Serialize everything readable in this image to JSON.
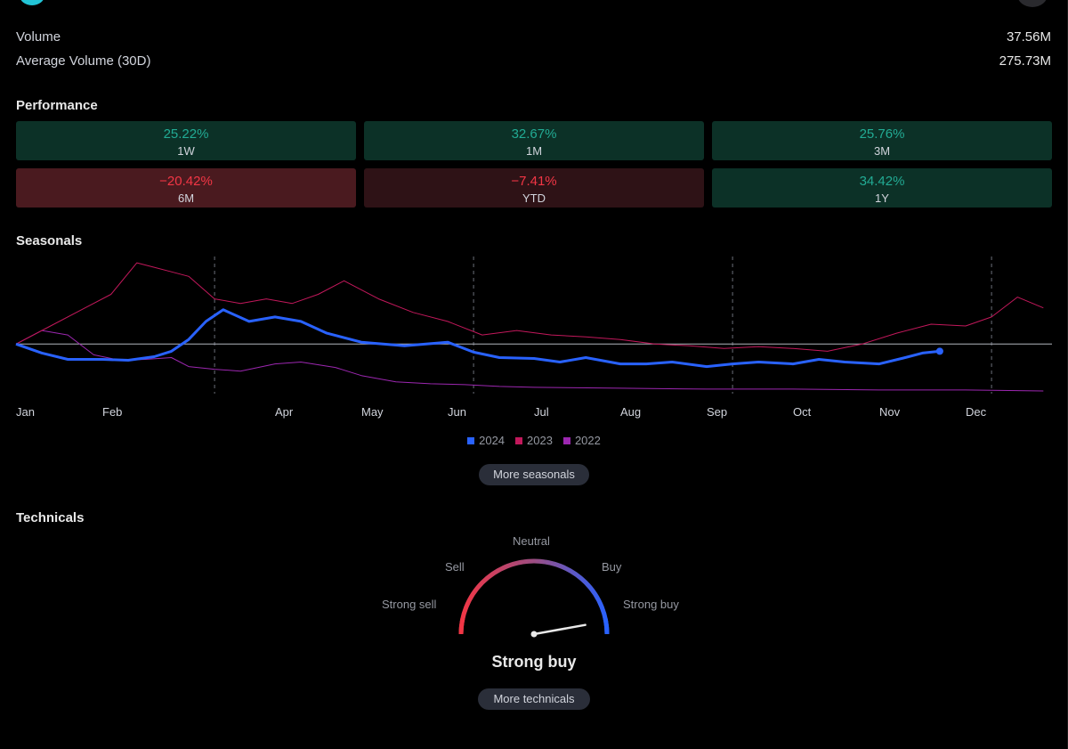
{
  "stats": {
    "volume_label": "Volume",
    "volume_value": "37.56M",
    "avg_volume_label": "Average Volume (30D)",
    "avg_volume_value": "275.73M"
  },
  "performance": {
    "title": "Performance",
    "cells": [
      {
        "pct": "25.22%",
        "label": "1W",
        "trend": "positive"
      },
      {
        "pct": "32.67%",
        "label": "1M",
        "trend": "positive"
      },
      {
        "pct": "25.76%",
        "label": "3M",
        "trend": "positive"
      },
      {
        "pct": "−20.42%",
        "label": "6M",
        "trend": "negative"
      },
      {
        "pct": "−7.41%",
        "label": "YTD",
        "trend": "negative"
      },
      {
        "pct": "34.42%",
        "label": "1Y",
        "trend": "positive"
      }
    ]
  },
  "seasonals": {
    "title": "Seasonals",
    "more_label": "More seasonals"
  },
  "chart_data": {
    "type": "line",
    "title": "Seasonals",
    "xlabel": "",
    "ylabel": "",
    "month_labels": [
      "Jan",
      "Feb",
      "Apr",
      "May",
      "Jun",
      "Jul",
      "Aug",
      "Sep",
      "Oct",
      "Nov",
      "Dec"
    ],
    "month_positions": [
      0,
      1,
      3,
      4,
      5,
      6,
      7,
      8,
      9,
      10,
      11
    ],
    "x_range": [
      0,
      12
    ],
    "y_range": [
      -55,
      95
    ],
    "quarter_markers": [
      2.3,
      5.3,
      8.3,
      11.3
    ],
    "baseline": 0,
    "series": [
      {
        "name": "2024",
        "color": "#2962ff",
        "x": [
          0,
          0.3,
          0.6,
          1.0,
          1.3,
          1.6,
          1.8,
          2.0,
          2.2,
          2.4,
          2.7,
          3.0,
          3.3,
          3.6,
          4.0,
          4.5,
          5.0,
          5.3,
          5.6,
          6.0,
          6.3,
          6.6,
          7.0,
          7.3,
          7.6,
          8.0,
          8.3,
          8.6,
          9.0,
          9.3,
          9.6,
          10.0,
          10.3,
          10.5,
          10.7
        ],
        "values": [
          0,
          -10,
          -17,
          -17,
          -18,
          -14,
          -8,
          5,
          25,
          38,
          25,
          30,
          25,
          12,
          2,
          -2,
          2,
          -9,
          -15,
          -16,
          -20,
          -15,
          -22,
          -22,
          -20,
          -25,
          -22,
          -20,
          -22,
          -17,
          -20,
          -22,
          -15,
          -10,
          -8
        ]
      },
      {
        "name": "2023",
        "color": "#c2185b",
        "x": [
          0,
          0.4,
          0.8,
          1.1,
          1.4,
          1.6,
          1.8,
          2.0,
          2.3,
          2.6,
          2.9,
          3.2,
          3.5,
          3.8,
          4.2,
          4.6,
          5.0,
          5.4,
          5.8,
          6.2,
          6.6,
          7.0,
          7.4,
          7.8,
          8.2,
          8.6,
          9.0,
          9.4,
          9.8,
          10.2,
          10.6,
          11.0,
          11.3,
          11.6,
          11.9
        ],
        "values": [
          0,
          20,
          40,
          55,
          90,
          85,
          80,
          75,
          50,
          45,
          50,
          45,
          55,
          70,
          50,
          35,
          25,
          10,
          15,
          10,
          8,
          5,
          0,
          -2,
          -5,
          -3,
          -5,
          -8,
          0,
          12,
          22,
          20,
          30,
          52,
          40
        ]
      },
      {
        "name": "2022",
        "color": "#9c27b0",
        "x": [
          0,
          0.3,
          0.6,
          0.9,
          1.2,
          1.5,
          1.8,
          2.0,
          2.3,
          2.6,
          3.0,
          3.3,
          3.7,
          4.0,
          4.4,
          4.8,
          5.2,
          5.6,
          6.0,
          7.0,
          8.0,
          9.0,
          10.0,
          11.0,
          11.9
        ],
        "values": [
          0,
          15,
          10,
          -12,
          -18,
          -17,
          -15,
          -25,
          -28,
          -30,
          -22,
          -20,
          -26,
          -35,
          -42,
          -44,
          -45,
          -47,
          -48,
          -49,
          -50,
          -50,
          -51,
          -51,
          -52
        ]
      }
    ]
  },
  "technicals": {
    "title": "Technicals",
    "labels": {
      "strong_sell": "Strong sell",
      "sell": "Sell",
      "neutral": "Neutral",
      "buy": "Buy",
      "strong_buy": "Strong buy"
    },
    "result": "Strong buy",
    "gauge_value": 0.88,
    "more_label": "More technicals"
  },
  "colors": {
    "positive": "#22ab94",
    "negative": "#f23645",
    "blue": "#2962ff"
  }
}
